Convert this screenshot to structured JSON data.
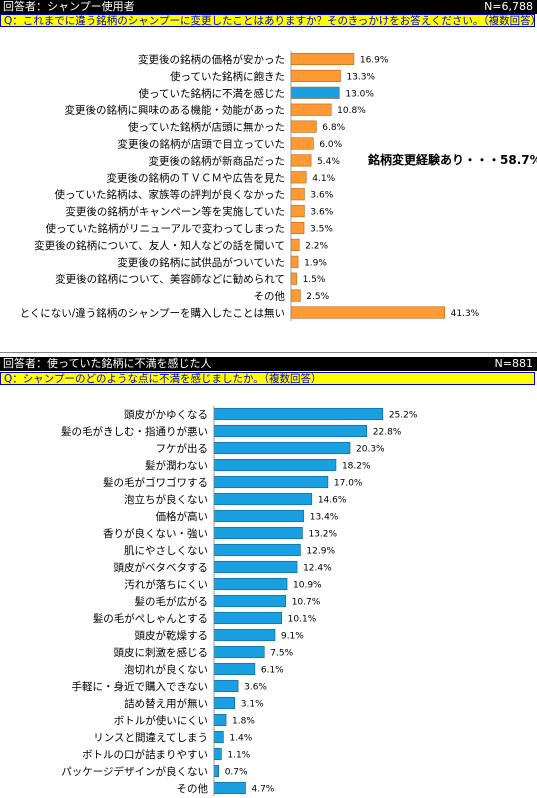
{
  "section1": {
    "respondent": "回答者：シャンプー使用者",
    "n": "N=6,788",
    "question": "Q：これまでに違う銘柄のシャンプーに変更したことはありますか？そのきっかけをお答えください。（複数回答）",
    "note": "銘柄変更経験あり・・・58.7%"
  },
  "section2": {
    "respondent": "回答者：使っていた銘柄に不満を感じた人",
    "n": "N=881",
    "question": "Q：シャンプーのどのような点に不満を感じましたか。（複数回答）"
  },
  "colors": {
    "orange": "#ff9933",
    "blue": "#1a9fe0",
    "highlight": "#1a9fe0"
  },
  "chart_data": [
    {
      "type": "bar",
      "orientation": "horizontal",
      "value_suffix": "%",
      "highlight_index": 2,
      "categories": [
        "変更後の銘柄の価格が安かった",
        "使っていた銘柄に飽きた",
        "使っていた銘柄に不満を感じた",
        "変更後の銘柄に興味のある機能・効能があった",
        "使っていた銘柄が店頭に無かった",
        "変更後の銘柄が店頭で目立っていた",
        "変更後の銘柄が新商品だった",
        "変更後の銘柄のＴＶＣＭや広告を見た",
        "使っていた銘柄は、家族等の評判が良くなかった",
        "変更後の銘柄がキャンペーン等を実施していた",
        "使っていた銘柄がリニューアルで変わってしまった",
        "変更後の銘柄について、友人・知人などの話を聞いて",
        "変更後の銘柄に試供品がついていた",
        "変更後の銘柄について、美容師などに勧められて",
        "その他",
        "とくにない/違う銘柄のシャンプーを購入したことは無い"
      ],
      "values": [
        16.9,
        13.3,
        13.0,
        10.8,
        6.8,
        6.0,
        5.4,
        4.1,
        3.6,
        3.6,
        3.5,
        2.2,
        1.9,
        1.5,
        2.5,
        41.3
      ]
    },
    {
      "type": "bar",
      "orientation": "horizontal",
      "value_suffix": "%",
      "categories": [
        "頭皮がかゆくなる",
        "髪の毛がきしむ・指通りが悪い",
        "フケが出る",
        "髪が潤わない",
        "髪の毛がゴワゴワする",
        "泡立ちが良くない",
        "価格が高い",
        "香りが良くない・強い",
        "肌にやさしくない",
        "頭皮がベタベタする",
        "汚れが落ちにくい",
        "髪の毛が広がる",
        "髪の毛がぺしゃんとする",
        "頭皮が乾燥する",
        "頭皮に刺激を感じる",
        "泡切れが良くない",
        "手軽に・身近で購入できない",
        "詰め替え用が無い",
        "ボトルが使いにくい",
        "リンスと間違えてしまう",
        "ボトルの口が詰まりやすい",
        "パッケージデザインが良くない",
        "その他"
      ],
      "values": [
        25.2,
        22.8,
        20.3,
        18.2,
        17.0,
        14.6,
        13.4,
        13.2,
        12.9,
        12.4,
        10.9,
        10.7,
        10.1,
        9.1,
        7.5,
        6.1,
        3.6,
        3.1,
        1.8,
        1.4,
        1.1,
        0.7,
        4.7
      ]
    }
  ]
}
